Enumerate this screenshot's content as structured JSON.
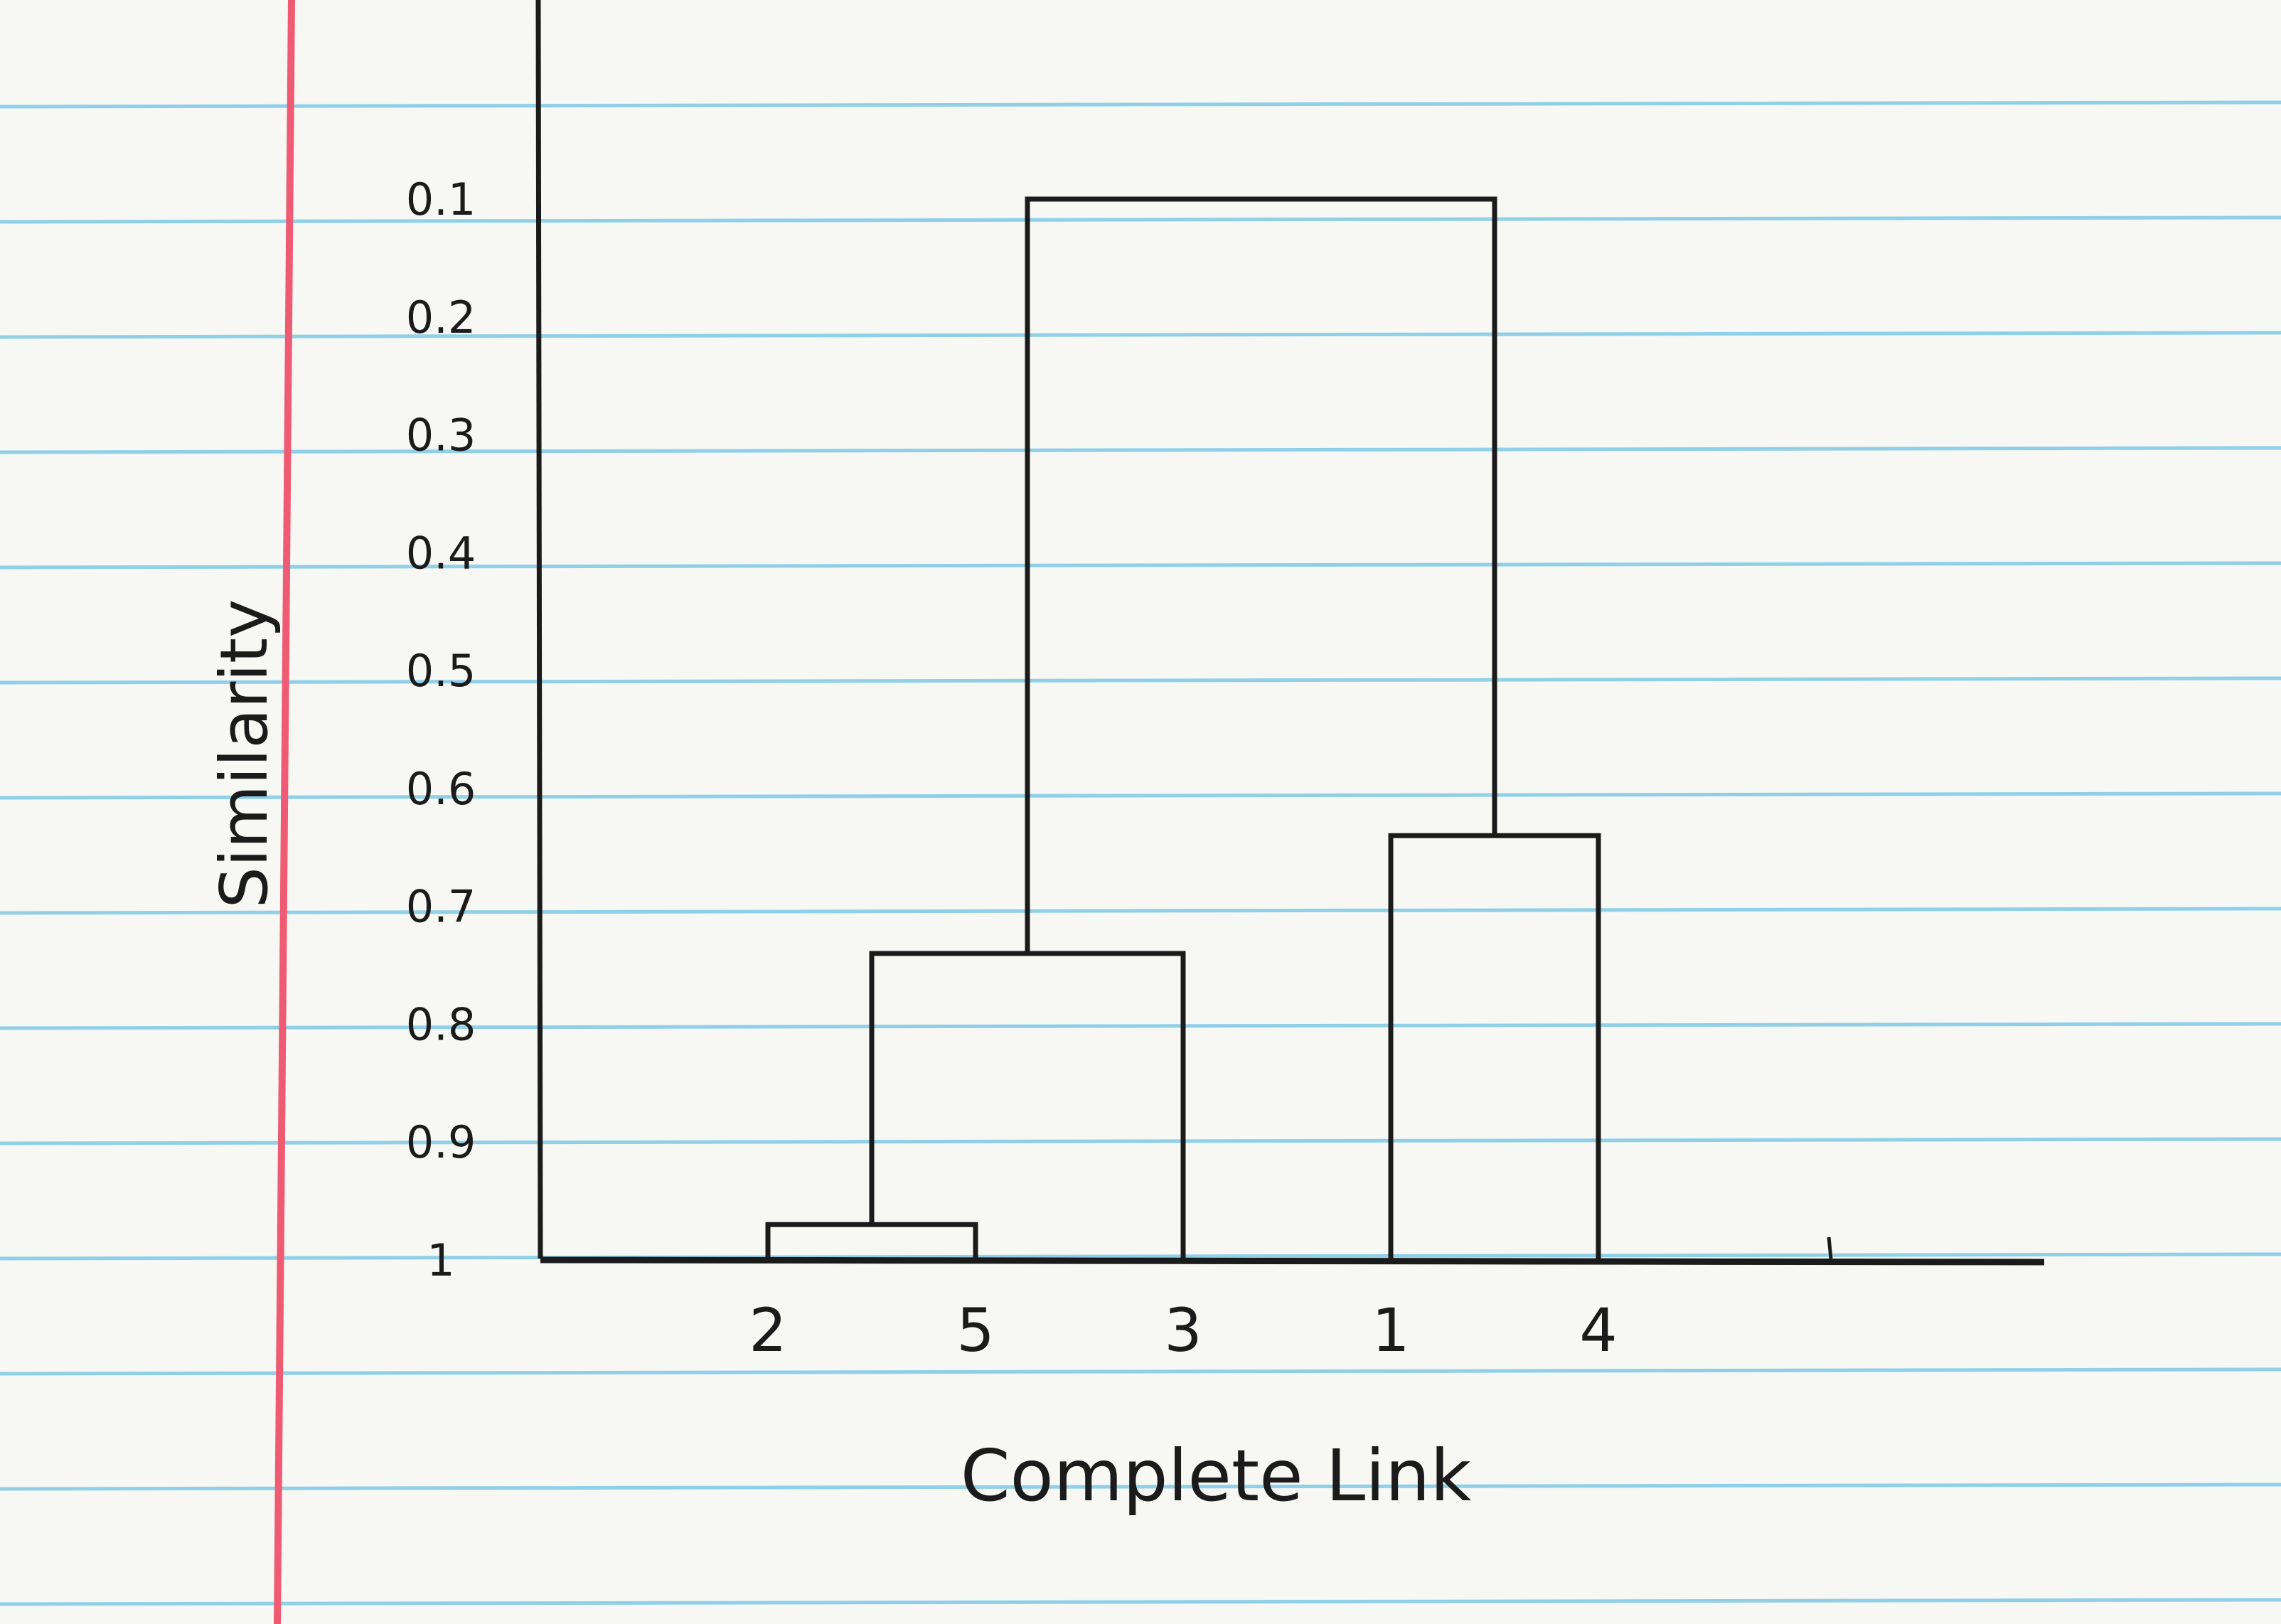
{
  "chart_data": {
    "type": "dendrogram",
    "title": "",
    "xlabel": "Complete Link",
    "ylabel": "Similarity",
    "y_ticks": [
      "0.1",
      "0.2",
      "0.3",
      "0.4",
      "0.5",
      "0.6",
      "0.7",
      "0.8",
      "0.9",
      "1"
    ],
    "ylim": [
      0.1,
      1
    ],
    "y_inverted": true,
    "leaves": [
      "2",
      "5",
      "3",
      "1",
      "4"
    ],
    "merges": [
      {
        "left": "2",
        "right": "5",
        "similarity": 0.97
      },
      {
        "left": "2,5",
        "right": "3",
        "similarity": 0.74
      },
      {
        "left": "1",
        "right": "4",
        "similarity": 0.64
      },
      {
        "left": "2,5,3",
        "right": "1,4",
        "similarity": 0.1
      }
    ],
    "grid": false,
    "legend": "none"
  },
  "colors": {
    "paper": "#f7f7f4",
    "ruled_line": "#8fd0e8",
    "margin_line": "#ee5b72",
    "ink": "#1b1b1b"
  }
}
